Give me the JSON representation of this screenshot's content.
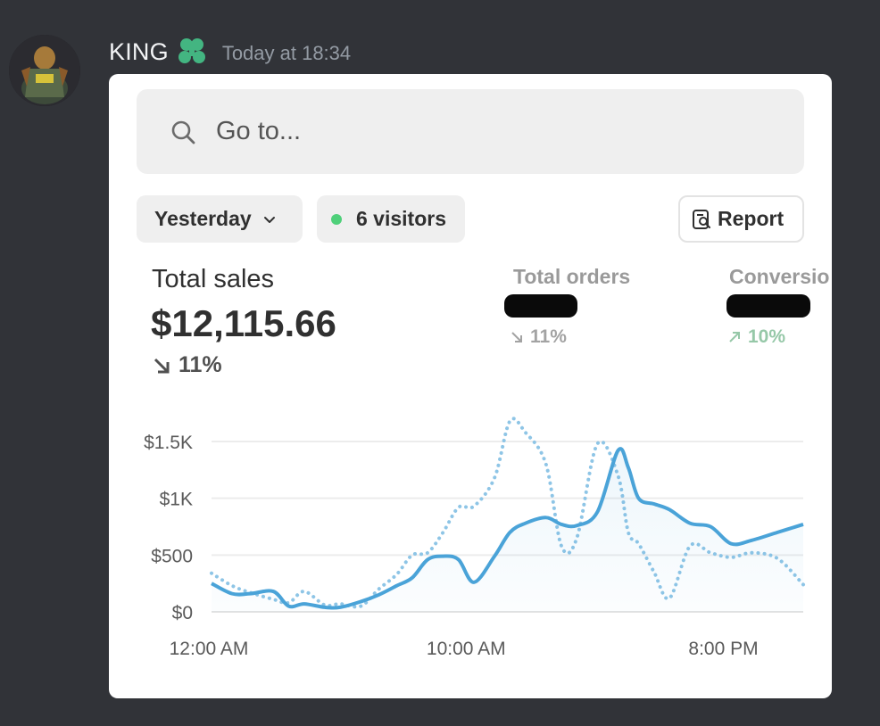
{
  "message": {
    "username": "KING",
    "timestamp": "Today at 18:34"
  },
  "search": {
    "placeholder": "Go to..."
  },
  "filters": {
    "date_label": "Yesterday",
    "visitors_label": "6 visitors",
    "report_label": "Report"
  },
  "metrics": {
    "total_sales": {
      "title": "Total sales",
      "value": "$12,115.66",
      "change": "11%",
      "direction": "down"
    },
    "total_orders": {
      "title": "Total orders",
      "value": "redacted",
      "change": "11%",
      "direction": "down"
    },
    "conversion": {
      "title": "Conversio",
      "value": "redacted",
      "change": "10%",
      "direction": "up"
    }
  },
  "colors": {
    "primary_series": "#4aa3d8",
    "comparison_series": "#8ec5e6",
    "positive": "#96c8a8"
  },
  "chart_data": {
    "type": "line",
    "y_ticks": [
      "$1.5K",
      "$1K",
      "$500",
      "$0"
    ],
    "x_ticks": [
      "12:00 AM",
      "10:00 AM",
      "8:00 PM"
    ],
    "ylim": [
      0,
      1500
    ],
    "x_range": [
      0,
      23
    ],
    "series": [
      {
        "style": "solid",
        "x": [
          0,
          0.8,
          1.5,
          2.4,
          3.0,
          3.6,
          4.4,
          5.0,
          5.8,
          6.5,
          7.2,
          7.8,
          8.4,
          9.0,
          9.6,
          10.2,
          11.0,
          11.6,
          12.2,
          13.0,
          13.6,
          14.2,
          15.0,
          15.8,
          16.2,
          16.6,
          17.2,
          17.8,
          18.6,
          19.4,
          20.2,
          21.0,
          22.0,
          23.0
        ],
        "values": [
          250,
          160,
          160,
          180,
          50,
          70,
          40,
          40,
          90,
          150,
          230,
          300,
          460,
          490,
          460,
          260,
          490,
          700,
          780,
          830,
          770,
          760,
          880,
          1420,
          1270,
          1000,
          950,
          900,
          780,
          750,
          600,
          630,
          700,
          770
        ]
      },
      {
        "style": "dotted",
        "x": [
          0,
          0.8,
          1.5,
          2.4,
          3.0,
          3.6,
          4.4,
          5.0,
          5.8,
          6.5,
          7.2,
          7.8,
          8.4,
          9.0,
          9.6,
          10.2,
          11.0,
          11.6,
          12.2,
          13.0,
          13.6,
          14.2,
          15.0,
          15.8,
          16.2,
          16.6,
          17.2,
          17.8,
          18.6,
          19.4,
          20.2,
          21.0,
          22.0,
          23.0
        ],
        "values": [
          340,
          230,
          170,
          110,
          80,
          180,
          60,
          70,
          50,
          200,
          330,
          500,
          520,
          700,
          920,
          930,
          1180,
          1680,
          1580,
          1300,
          580,
          650,
          1480,
          1200,
          700,
          600,
          350,
          120,
          580,
          520,
          480,
          520,
          470,
          240
        ]
      }
    ]
  }
}
